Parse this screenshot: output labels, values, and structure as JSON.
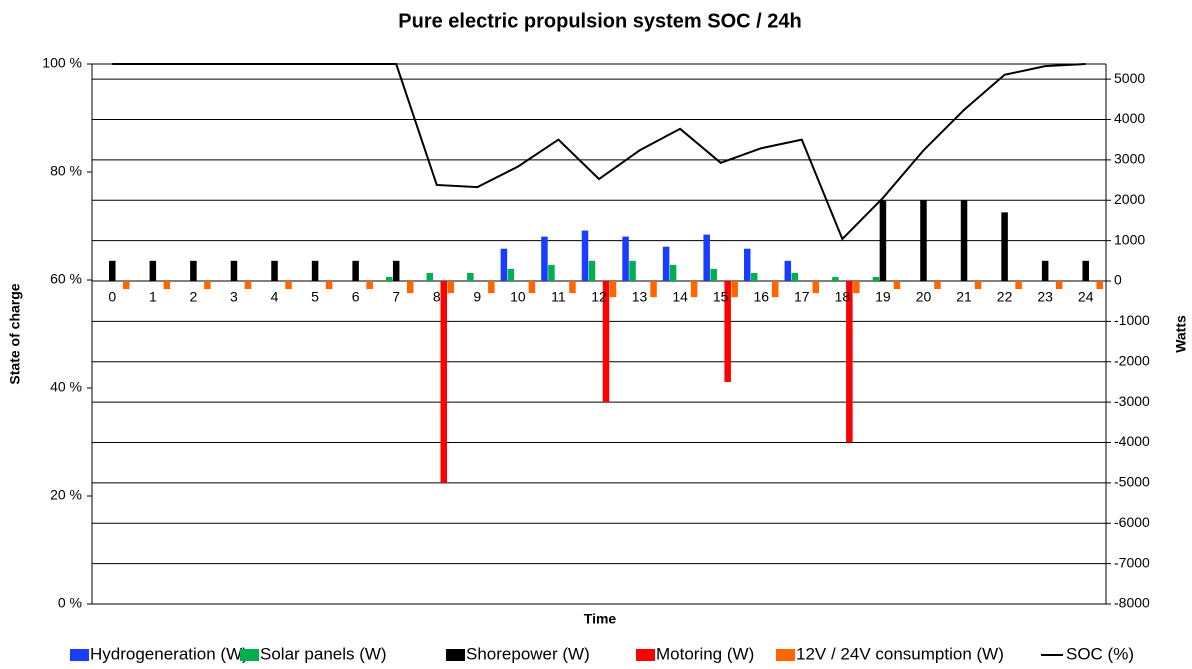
{
  "chart_data": {
    "type": "bar",
    "title": "Pure electric propulsion system SOC / 24h",
    "x_label": "Time",
    "y_label": "State of charge",
    "y2_label": "Watts",
    "categories": [
      "0",
      "1",
      "2",
      "3",
      "4",
      "5",
      "6",
      "7",
      "8",
      "9",
      "10",
      "11",
      "12",
      "13",
      "14",
      "15",
      "16",
      "17",
      "18",
      "19",
      "20",
      "21",
      "22",
      "23",
      "24"
    ],
    "ylim": [
      0,
      100
    ],
    "yticks": [
      {
        "value": 0,
        "label": "0 %"
      },
      {
        "value": 20,
        "label": "20 %"
      },
      {
        "value": 40,
        "label": "40 %"
      },
      {
        "value": 60,
        "label": "60 %"
      },
      {
        "value": 80,
        "label": "80 %"
      },
      {
        "value": 100,
        "label": "100 %"
      }
    ],
    "y2lim": [
      -8000,
      5375
    ],
    "y2ticks": [
      -8000,
      -7000,
      -6000,
      -5000,
      -4000,
      -3000,
      -2000,
      -1000,
      0,
      1000,
      2000,
      3000,
      4000,
      5000
    ],
    "grid": true,
    "legend": "bottom",
    "series": [
      {
        "name": "Hydrogeneration (W)",
        "color": "#1a3cff",
        "axis": "y2",
        "values": [
          0,
          0,
          0,
          0,
          0,
          0,
          0,
          0,
          0,
          0,
          800,
          1100,
          1250,
          1100,
          850,
          1150,
          800,
          500,
          0,
          0,
          0,
          0,
          0,
          0,
          0
        ]
      },
      {
        "name": "Solar panels (W)",
        "color": "#00b050",
        "axis": "y2",
        "values": [
          0,
          0,
          0,
          0,
          0,
          0,
          0,
          100,
          200,
          200,
          300,
          400,
          500,
          500,
          400,
          300,
          200,
          200,
          100,
          100,
          0,
          0,
          0,
          0,
          0
        ]
      },
      {
        "name": "Shorepower (W)",
        "color": "#000000",
        "axis": "y2",
        "values": [
          500,
          500,
          500,
          500,
          500,
          500,
          500,
          500,
          0,
          0,
          0,
          0,
          0,
          0,
          0,
          0,
          0,
          0,
          0,
          2000,
          2000,
          2000,
          1700,
          500,
          500
        ]
      },
      {
        "name": "Motoring (W)",
        "color": "#ff0000",
        "axis": "y2",
        "values": [
          0,
          0,
          0,
          0,
          0,
          0,
          0,
          0,
          -5000,
          0,
          0,
          0,
          -3000,
          0,
          0,
          -2500,
          0,
          0,
          -4000,
          0,
          0,
          0,
          0,
          0,
          0
        ]
      },
      {
        "name": "12V / 24V consumption (W)",
        "color": "#ff6600",
        "axis": "y2",
        "values": [
          -200,
          -200,
          -200,
          -200,
          -200,
          -200,
          -200,
          -300,
          -300,
          -300,
          -300,
          -300,
          -400,
          -400,
          -400,
          -400,
          -400,
          -300,
          -300,
          -200,
          -200,
          -200,
          -200,
          -200,
          -200
        ]
      },
      {
        "name": "SOC (%)",
        "color": "#000000",
        "type": "line",
        "axis": "y",
        "values": [
          100,
          100,
          100,
          100,
          100,
          100,
          100,
          100,
          77.6,
          77.2,
          81,
          86,
          78.7,
          84,
          88,
          81.7,
          84.4,
          86,
          67.6,
          75.2,
          84,
          91.5,
          98,
          99.6,
          100
        ]
      }
    ]
  }
}
